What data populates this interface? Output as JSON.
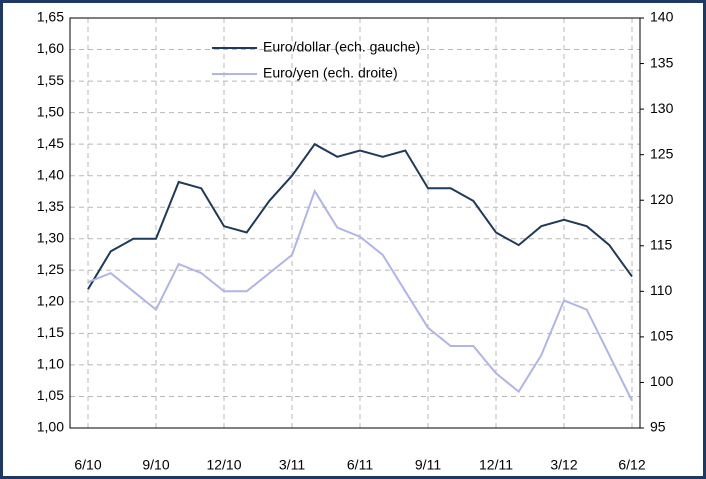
{
  "chart_data": {
    "type": "line",
    "x": [
      "2010-06",
      "2010-07",
      "2010-08",
      "2010-09",
      "2010-10",
      "2010-11",
      "2010-12",
      "2011-01",
      "2011-02",
      "2011-03",
      "2011-04",
      "2011-05",
      "2011-06",
      "2011-07",
      "2011-08",
      "2011-09",
      "2011-10",
      "2011-11",
      "2011-12",
      "2012-01",
      "2012-02",
      "2012-03",
      "2012-04",
      "2012-05",
      "2012-06"
    ],
    "series": [
      {
        "name": "Euro/dollar (ech. gauche)",
        "color": "#1f3a5a",
        "axis": "y",
        "values": [
          1.22,
          1.28,
          1.3,
          1.3,
          1.39,
          1.38,
          1.32,
          1.31,
          1.36,
          1.4,
          1.45,
          1.43,
          1.44,
          1.43,
          1.44,
          1.38,
          1.38,
          1.36,
          1.31,
          1.29,
          1.32,
          1.33,
          1.32,
          1.29,
          1.24
        ]
      },
      {
        "name": "Euro/yen (ech. droite)",
        "color": "#b0b4e8",
        "axis": "y2",
        "values": [
          111,
          112,
          110,
          108,
          113,
          112,
          110,
          110,
          112,
          114,
          121,
          117,
          116,
          114,
          110,
          106,
          104,
          104,
          101,
          99,
          103,
          109,
          108,
          103,
          98
        ]
      }
    ],
    "ylim": [
      1.0,
      1.65
    ],
    "yticks": [
      {
        "value": 1.0,
        "label": "1,00"
      },
      {
        "value": 1.05,
        "label": "1,05"
      },
      {
        "value": 1.1,
        "label": "1,10"
      },
      {
        "value": 1.15,
        "label": "1,15"
      },
      {
        "value": 1.2,
        "label": "1,20"
      },
      {
        "value": 1.25,
        "label": "1,25"
      },
      {
        "value": 1.3,
        "label": "1,30"
      },
      {
        "value": 1.35,
        "label": "1,35"
      },
      {
        "value": 1.4,
        "label": "1,40"
      },
      {
        "value": 1.45,
        "label": "1,45"
      },
      {
        "value": 1.5,
        "label": "1,50"
      },
      {
        "value": 1.55,
        "label": "1,55"
      },
      {
        "value": 1.6,
        "label": "1,60"
      },
      {
        "value": 1.65,
        "label": "1,65"
      }
    ],
    "y2lim": [
      95,
      140
    ],
    "y2ticks": [
      95,
      100,
      105,
      110,
      115,
      120,
      125,
      130,
      135,
      140
    ],
    "xticks": [
      {
        "value": "2010-06",
        "label": "6/10"
      },
      {
        "value": "2010-09",
        "label": "9/10"
      },
      {
        "value": "2010-12",
        "label": "12/10"
      },
      {
        "value": "2011-03",
        "label": "3/11"
      },
      {
        "value": "2011-06",
        "label": "6/11"
      },
      {
        "value": "2011-09",
        "label": "9/11"
      },
      {
        "value": "2011-12",
        "label": "12/11"
      },
      {
        "value": "2012-03",
        "label": "3/12"
      },
      {
        "value": "2012-06",
        "label": "6/12"
      }
    ],
    "grid": true
  }
}
